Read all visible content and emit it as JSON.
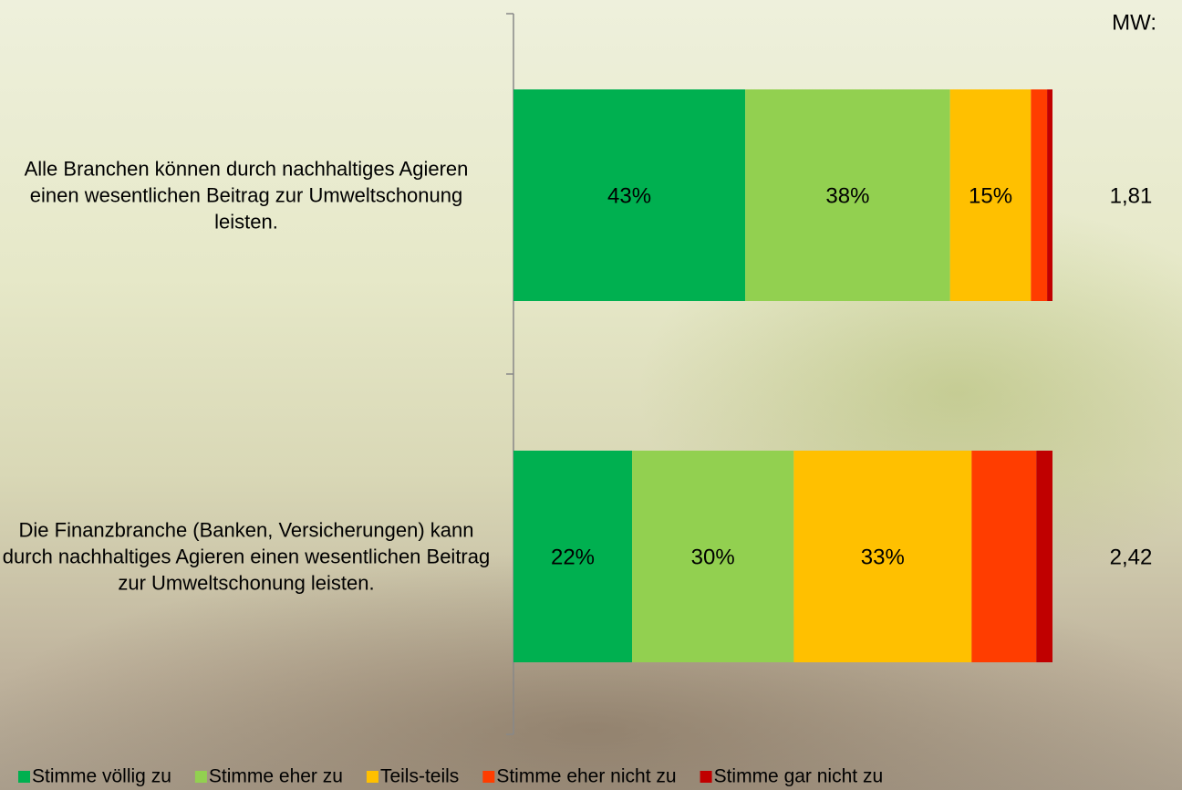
{
  "chart_data": {
    "type": "stacked-bar-horizontal",
    "categories": [
      "Alle Branchen können durch nachhaltiges Agieren einen wesentlichen Beitrag zur Umweltschonung leisten.",
      "Die Finanzbranche (Banken, Versicherungen) kann durch nachhaltiges Agieren einen wesentlichen Beitrag zur Umweltschonung leisten."
    ],
    "series": [
      {
        "name": "Stimme völlig zu",
        "color": "#00b050",
        "values": [
          43,
          22
        ],
        "value_labels": [
          "43%",
          "22%"
        ]
      },
      {
        "name": "Stimme eher zu",
        "color": "#92d050",
        "values": [
          38,
          30
        ],
        "value_labels": [
          "38%",
          "30%"
        ]
      },
      {
        "name": "Teils-teils",
        "color": "#ffc000",
        "values": [
          15,
          33
        ],
        "value_labels": [
          "15%",
          "33%"
        ]
      },
      {
        "name": "Stimme eher nicht zu",
        "color": "#ff3d00",
        "values": [
          3,
          12
        ],
        "value_labels": [
          null,
          null
        ]
      },
      {
        "name": "Stimme gar nicht zu",
        "color": "#c00000",
        "values": [
          1,
          3
        ],
        "value_labels": [
          null,
          null
        ]
      }
    ],
    "xlim": [
      0,
      100
    ],
    "means_title": "MW:",
    "means": [
      {
        "value": 1.81,
        "label": "1,81"
      },
      {
        "value": 2.42,
        "label": "2,42"
      }
    ]
  }
}
